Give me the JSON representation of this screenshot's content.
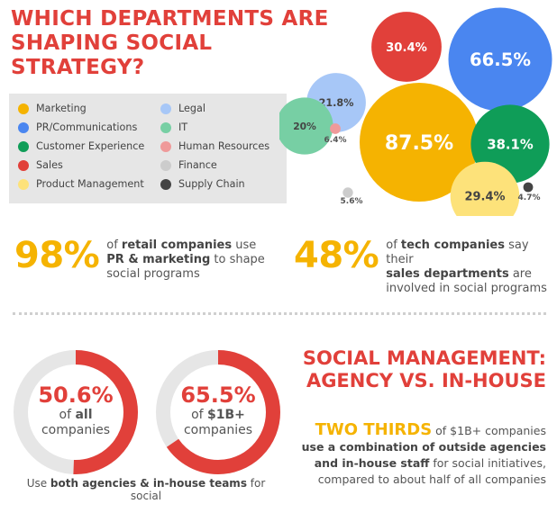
{
  "title_line1": "WHICH DEPARTMENTS ARE",
  "title_line2": "SHAPING SOCIAL STRATEGY?",
  "chart_data": {
    "type": "bubble",
    "title": "WHICH DEPARTMENTS ARE SHAPING SOCIAL STRATEGY?",
    "categories": [
      "Marketing",
      "PR/Communications",
      "Customer Experience",
      "Sales",
      "Product Management",
      "Legal",
      "IT",
      "Human Resources",
      "Finance",
      "Supply Chain"
    ],
    "values": [
      87.5,
      66.5,
      38.1,
      30.4,
      29.4,
      21.8,
      20,
      6.4,
      5.6,
      4.7
    ],
    "value_labels": [
      "87.5%",
      "66.5%",
      "38.1%",
      "30.4%",
      "29.4%",
      "21.8%",
      "20%",
      "6.4%",
      "5.6%",
      "4.7%"
    ],
    "colors": [
      "#f5b301",
      "#4a86f0",
      "#0f9d58",
      "#e1403a",
      "#fde27a",
      "#a7c7f7",
      "#77cfa4",
      "#ef9a9a",
      "#cccccc",
      "#444444"
    ],
    "legend_position": "left"
  },
  "legend": {
    "col1": [
      "Marketing",
      "PR/Communications",
      "Customer Experience",
      "Sales",
      "Product Management"
    ],
    "col2": [
      "Legal",
      "IT",
      "Human Resources",
      "Finance",
      "Supply Chain"
    ]
  },
  "stat1": {
    "pct": "98%",
    "t1": "of ",
    "b1": "retail companies",
    "t2": " use",
    "b2": "PR & marketing",
    "t3": " to shape",
    "t4": "social programs"
  },
  "stat2": {
    "pct": "48%",
    "t1": "of ",
    "b1": "tech companies",
    "t2": " say their",
    "b2": "sales departments",
    "t3": " are",
    "t4": "involved in social programs"
  },
  "ring1": {
    "value": 50.6,
    "pct": "50.6%",
    "line1a": "of ",
    "line1b": "all",
    "line2": "companies"
  },
  "ring2": {
    "value": 65.5,
    "pct": "65.5%",
    "line1a": "of ",
    "line1b": "$1B+",
    "line2": "companies"
  },
  "ring_colors": {
    "fill": "#e1403a",
    "track": "#e6e6e6"
  },
  "ring_caption": {
    "t1": "Use ",
    "b1": "both agencies & in-house teams",
    "t2": " for social"
  },
  "mgmt": {
    "title1": "SOCIAL MANAGEMENT:",
    "title2": "AGENCY VS. IN-HOUSE",
    "lead": "TWO THIRDS",
    "t1": " of $1B+ companies",
    "b1": "use a combination of outside agencies",
    "b2": "and in-house staff",
    "t2": " for social initiatives,",
    "t3": "compared to about half of all companies"
  }
}
